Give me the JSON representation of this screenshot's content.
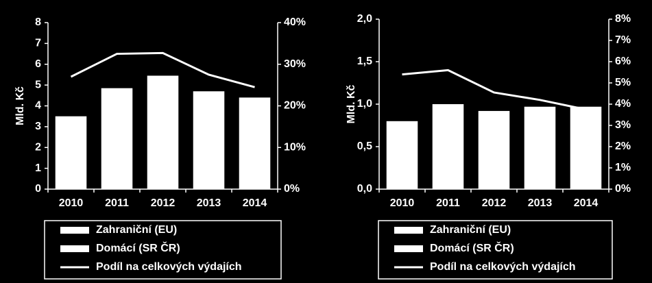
{
  "chart_data": [
    {
      "type": "bar",
      "y_label": "Mld. Kč",
      "categories": [
        "2010",
        "2011",
        "2012",
        "2013",
        "2014"
      ],
      "series": [
        {
          "name": "Zahraniční (EU)",
          "type": "bar",
          "color": "#ffffff",
          "values": [
            3.5,
            4.85,
            5.45,
            4.7,
            4.4
          ]
        },
        {
          "name": "Domácí (SR ČR)",
          "type": "bar",
          "color": "#ffffff",
          "values": [
            null,
            null,
            null,
            null,
            null
          ]
        },
        {
          "name": "Podíl na celkových výdajích",
          "type": "line",
          "axis": "y2",
          "color": "#ffffff",
          "values": [
            27,
            32.5,
            32.7,
            27.5,
            24.5
          ]
        }
      ],
      "ylim": [
        0,
        8
      ],
      "yticks": [
        0,
        1,
        2,
        3,
        4,
        5,
        6,
        7,
        8
      ],
      "y2lim": [
        0,
        40
      ],
      "y2ticks": [
        {
          "value": 0,
          "label": "0%"
        },
        {
          "value": 10,
          "label": "10%"
        },
        {
          "value": 20,
          "label": "20%"
        },
        {
          "value": 30,
          "label": "30%"
        },
        {
          "value": 40,
          "label": "40%"
        }
      ],
      "grid": false
    },
    {
      "type": "bar",
      "y_label": "Mld. Kč",
      "categories": [
        "2010",
        "2011",
        "2012",
        "2013",
        "2014"
      ],
      "series": [
        {
          "name": "Zahraniční (EU)",
          "type": "bar",
          "color": "#ffffff",
          "values": [
            0.8,
            1.0,
            0.92,
            0.97,
            0.97
          ]
        },
        {
          "name": "Domácí (SR ČR)",
          "type": "bar",
          "color": "#ffffff",
          "values": [
            null,
            null,
            null,
            null,
            null
          ]
        },
        {
          "name": "Podíl na celkových výdajích",
          "type": "line",
          "axis": "y2",
          "color": "#ffffff",
          "values": [
            5.4,
            5.6,
            4.55,
            4.2,
            3.75
          ]
        }
      ],
      "ylim": [
        0,
        2
      ],
      "yticks": [
        {
          "value": 0,
          "label": "0,0"
        },
        {
          "value": 0.5,
          "label": "0,5"
        },
        {
          "value": 1,
          "label": "1,0"
        },
        {
          "value": 1.5,
          "label": "1,5"
        },
        {
          "value": 2,
          "label": "2,0"
        }
      ],
      "y2lim": [
        0,
        8
      ],
      "y2ticks": [
        {
          "value": 0,
          "label": "0%"
        },
        {
          "value": 1,
          "label": "1%"
        },
        {
          "value": 2,
          "label": "2%"
        },
        {
          "value": 3,
          "label": "3%"
        },
        {
          "value": 4,
          "label": "4%"
        },
        {
          "value": 5,
          "label": "5%"
        },
        {
          "value": 6,
          "label": "6%"
        },
        {
          "value": 7,
          "label": "7%"
        },
        {
          "value": 8,
          "label": "8%"
        }
      ],
      "grid": false
    }
  ]
}
